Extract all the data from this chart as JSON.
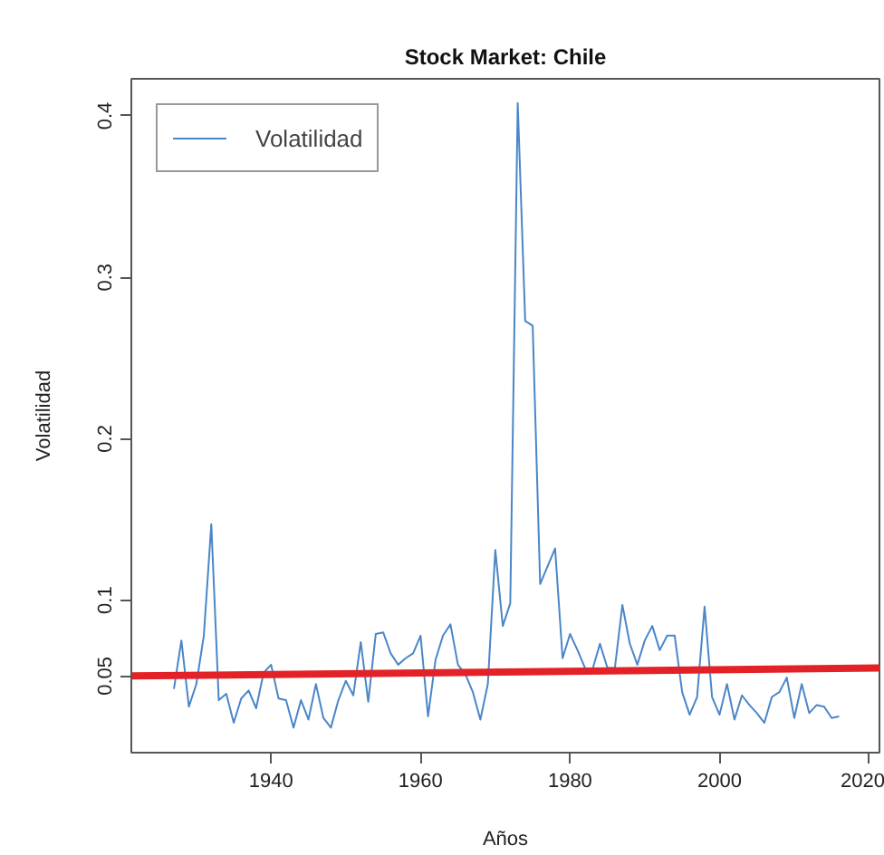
{
  "chart_data": {
    "type": "line",
    "title": "Stock Market: Chile",
    "xlabel": "Años",
    "ylabel": "Volatilidad",
    "xlim": [
      1921.3,
      2021.4
    ],
    "xticks": [
      1940,
      1960,
      1980,
      2000,
      2020
    ],
    "ylim": [
      0.0055,
      0.423
    ],
    "yticks": [
      {
        "value": 0.053,
        "label": "0.05"
      },
      0.1,
      0.2,
      0.3,
      0.4
    ],
    "legend": "top left",
    "series": [
      {
        "name": "Volatilidad",
        "color": "#4a86c8",
        "x": [
          1927,
          1928,
          1929,
          1930,
          1931,
          1932,
          1933,
          1934,
          1935,
          1936,
          1937,
          1938,
          1939,
          1940,
          1941,
          1942,
          1943,
          1944,
          1945,
          1946,
          1947,
          1948,
          1949,
          1950,
          1951,
          1952,
          1953,
          1954,
          1955,
          1956,
          1957,
          1958,
          1959,
          1960,
          1961,
          1962,
          1963,
          1964,
          1965,
          1966,
          1967,
          1968,
          1969,
          1970,
          1971,
          1972,
          1973,
          1974,
          1975,
          1976,
          1977,
          1978,
          1979,
          1980,
          1981,
          1982,
          1983,
          1984,
          1985,
          1986,
          1987,
          1988,
          1989,
          1990,
          1991,
          1992,
          1993,
          1994,
          1995,
          1996,
          1997,
          1998,
          1999,
          2000,
          2001,
          2002,
          2003,
          2004,
          2005,
          2006,
          2007,
          2008,
          2009,
          2010,
          2011,
          2012,
          2013,
          2014,
          2015,
          2016
        ],
        "values": [
          0.045,
          0.075,
          0.034,
          0.048,
          0.078,
          0.147,
          0.038,
          0.042,
          0.024,
          0.039,
          0.044,
          0.033,
          0.055,
          0.06,
          0.039,
          0.038,
          0.021,
          0.038,
          0.026,
          0.048,
          0.027,
          0.021,
          0.038,
          0.05,
          0.041,
          0.074,
          0.037,
          0.079,
          0.08,
          0.067,
          0.06,
          0.064,
          0.067,
          0.078,
          0.028,
          0.063,
          0.078,
          0.085,
          0.06,
          0.054,
          0.043,
          0.026,
          0.048,
          0.131,
          0.084,
          0.098,
          0.408,
          0.273,
          0.27,
          0.11,
          0.121,
          0.132,
          0.064,
          0.079,
          0.069,
          0.058,
          0.057,
          0.073,
          0.058,
          0.058,
          0.097,
          0.073,
          0.06,
          0.075,
          0.084,
          0.069,
          0.078,
          0.078,
          0.043,
          0.029,
          0.04,
          0.096,
          0.04,
          0.029,
          0.048,
          0.026,
          0.041,
          0.035,
          0.03,
          0.024,
          0.04,
          0.043,
          0.052,
          0.027,
          0.048,
          0.03,
          0.035,
          0.034,
          0.027,
          0.028
        ]
      },
      {
        "type": "line",
        "color": "#e32228",
        "x": [
          1921.3,
          2021.4
        ],
        "values": [
          0.053,
          0.058
        ]
      }
    ]
  }
}
